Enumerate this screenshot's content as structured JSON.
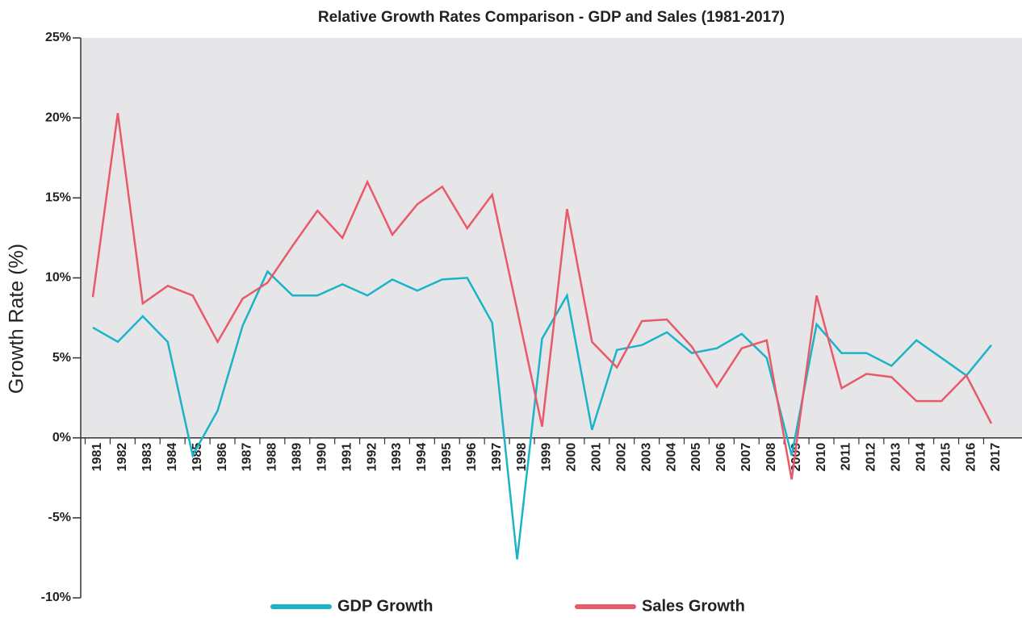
{
  "chart_data": {
    "type": "line",
    "title": "Relative Growth Rates Comparison - GDP and Sales (1981-2017)",
    "y_label": "Growth Rate (%)",
    "categories": [
      "1981",
      "1982",
      "1983",
      "1984",
      "1985",
      "1986",
      "1987",
      "1988",
      "1989",
      "1990",
      "1991",
      "1992",
      "1993",
      "1994",
      "1995",
      "1996",
      "1997",
      "1998",
      "1999",
      "2000",
      "2001",
      "2002",
      "2003",
      "2004",
      "2005",
      "2006",
      "2007",
      "2008",
      "2009",
      "2010",
      "2011",
      "2012",
      "2013",
      "2014",
      "2015",
      "2016",
      "2017"
    ],
    "series": [
      {
        "name": "GDP Growth",
        "color": "#1ab3c8",
        "values": [
          6.9,
          6.0,
          7.6,
          6.0,
          -1.1,
          1.7,
          7.0,
          10.4,
          8.9,
          8.9,
          9.6,
          8.9,
          9.9,
          9.2,
          9.9,
          10.0,
          7.2,
          -7.6,
          6.2,
          8.9,
          0.5,
          5.5,
          5.8,
          6.6,
          5.3,
          5.6,
          6.5,
          5.0,
          -1.1,
          7.1,
          5.3,
          5.3,
          4.5,
          6.1,
          5.0,
          3.9,
          5.8
        ]
      },
      {
        "name": "Sales Growth",
        "color": "#e85a6a",
        "values": [
          8.8,
          20.3,
          8.4,
          9.5,
          8.9,
          6.0,
          8.7,
          9.7,
          12.0,
          14.2,
          12.5,
          16.0,
          12.7,
          14.6,
          15.7,
          13.1,
          15.2,
          8.0,
          0.7,
          14.3,
          6.0,
          4.4,
          7.3,
          7.4,
          5.7,
          3.2,
          5.6,
          6.1,
          -2.6,
          8.9,
          3.1,
          4.0,
          3.8,
          2.3,
          2.3,
          3.9,
          0.9
        ]
      }
    ],
    "ylim": [
      -10,
      25
    ],
    "yticks": [
      {
        "value": -10,
        "label": "-10%"
      },
      {
        "value": -5,
        "label": "-5%"
      },
      {
        "value": 0,
        "label": "0%"
      },
      {
        "value": 5,
        "label": "5%"
      },
      {
        "value": 10,
        "label": "10%"
      },
      {
        "value": 15,
        "label": "15%"
      },
      {
        "value": 20,
        "label": "20%"
      },
      {
        "value": 25,
        "label": "25%"
      }
    ],
    "plot_background": "#e6e6e8",
    "legend": "bottom"
  }
}
